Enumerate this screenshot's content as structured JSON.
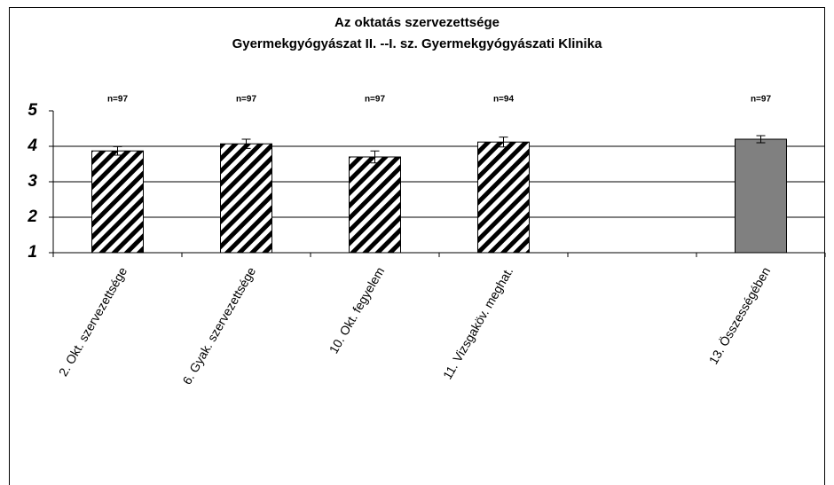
{
  "chart_data": {
    "type": "bar",
    "title": "Az oktatás szervezettsége",
    "subtitle": "Gyermekgyógyászat II. --I. sz. Gyermekgyógyászati Klinika",
    "categories": [
      "2. Okt. szervezettsége",
      "6. Gyak. szervezettsége",
      "10. Okt. fegyelem",
      "11. Vizsgaköv. meghat.",
      null,
      "13. Összességében"
    ],
    "values": [
      3.87,
      4.07,
      3.7,
      4.12,
      null,
      4.2
    ],
    "errors": [
      0.12,
      0.13,
      0.17,
      0.14,
      null,
      0.1
    ],
    "annotations": [
      "n=97",
      "n=97",
      "n=97",
      "n=94",
      null,
      "n=97"
    ],
    "colors": [
      "#000000",
      "#000000",
      "#000000",
      "#000000",
      null,
      "#808080"
    ],
    "fill_patterns": [
      "diagonal",
      "diagonal",
      "diagonal",
      "diagonal",
      null,
      "solid"
    ],
    "ylim": [
      1,
      5
    ],
    "yticks": [
      1,
      2,
      3,
      4,
      5
    ],
    "grid": true
  }
}
